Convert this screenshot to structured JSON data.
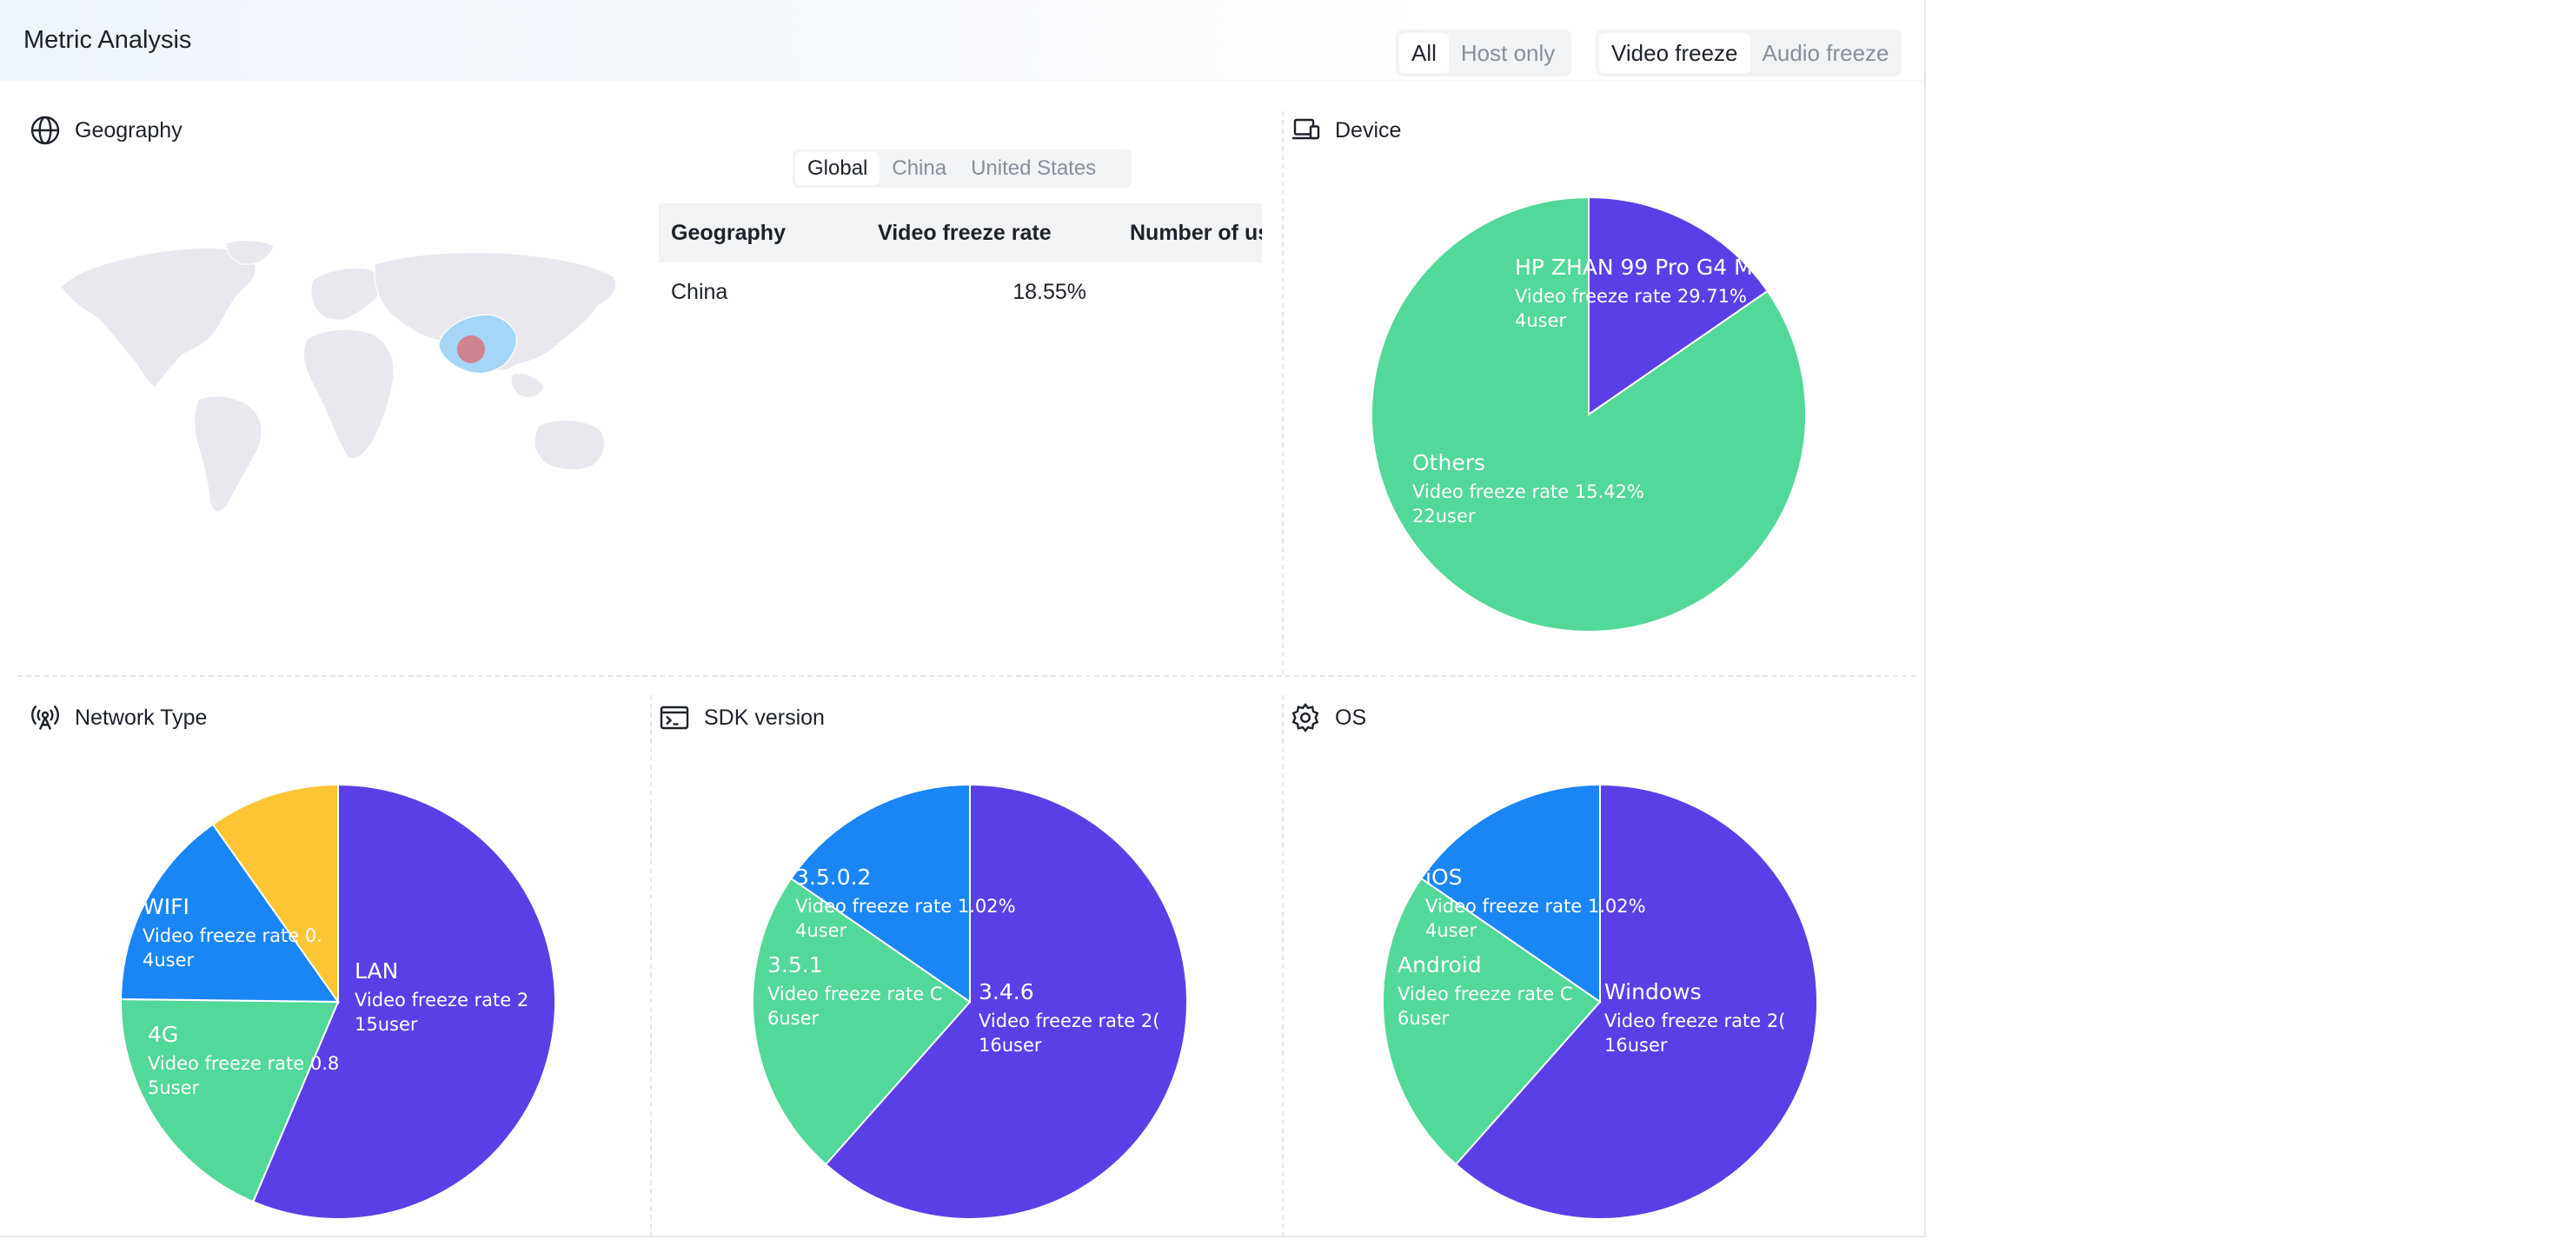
{
  "header": {
    "title": "Metric Analysis",
    "scope_options": [
      {
        "label": "All",
        "selected": true
      },
      {
        "label": "Host only",
        "selected": false
      }
    ],
    "metric_options": [
      {
        "label": "Video freeze",
        "selected": true
      },
      {
        "label": "Audio freeze",
        "selected": false
      }
    ]
  },
  "geography": {
    "title": "Geography",
    "region_tabs": [
      {
        "label": "Global",
        "selected": true
      },
      {
        "label": "China",
        "selected": false
      },
      {
        "label": "United States",
        "selected": false
      }
    ],
    "table": {
      "columns": [
        "Geography",
        "Video freeze rate",
        "Number of us"
      ],
      "rows": [
        [
          "China",
          "18.55%",
          ""
        ]
      ]
    }
  },
  "colors": {
    "purple": "#5b3fe6",
    "green": "#52d898",
    "blue": "#1a86f5",
    "yellow": "#fdc434",
    "map_land": "#e9e8ee",
    "map_highlight": "#a5d6f7",
    "map_marker": "#d57a86"
  },
  "device": {
    "title": "Device",
    "icon": "laptop-icon",
    "chart_data": {
      "type": "pie",
      "slices": [
        {
          "label": "HP ZHAN 99 Pro G4 M",
          "line1": "Video freeze rate 29.71%",
          "line2": "4user",
          "value": 4,
          "color": "#5b3fe6"
        },
        {
          "label": "Others",
          "line1": "Video freeze rate 15.42%",
          "line2": "22user",
          "value": 22,
          "color": "#52d898"
        }
      ]
    }
  },
  "network": {
    "title": "Network Type",
    "icon": "antenna-icon",
    "chart_data": {
      "type": "pie",
      "slices": [
        {
          "label": "LAN",
          "line1": "Video freeze rate 2",
          "line2": "15user",
          "value": 15,
          "color": "#5b3fe6"
        },
        {
          "label": "4G",
          "line1": "Video freeze rate 0.8",
          "line2": "5user",
          "value": 5,
          "color": "#52d898"
        },
        {
          "label": "WIFI",
          "line1": "Video freeze rate 0.",
          "line2": "4user",
          "value": 4,
          "color": "#1a86f5"
        },
        {
          "label": "",
          "line1": "",
          "line2": "",
          "value": 2.6,
          "color": "#fdc434"
        }
      ]
    }
  },
  "sdk": {
    "title": "SDK version",
    "icon": "terminal-icon",
    "chart_data": {
      "type": "pie",
      "slices": [
        {
          "label": "3.4.6",
          "line1": "Video freeze rate 2(",
          "line2": "16user",
          "value": 16,
          "color": "#5b3fe6"
        },
        {
          "label": "3.5.1",
          "line1": "Video freeze rate C",
          "line2": "6user",
          "value": 6,
          "color": "#52d898"
        },
        {
          "label": "3.5.0.2",
          "line1": "Video freeze rate 1.02%",
          "line2": "4user",
          "value": 4,
          "color": "#1a86f5"
        }
      ]
    }
  },
  "os": {
    "title": "OS",
    "icon": "gear-icon",
    "chart_data": {
      "type": "pie",
      "slices": [
        {
          "label": "Windows",
          "line1": "Video freeze rate 2(",
          "line2": "16user",
          "value": 16,
          "color": "#5b3fe6"
        },
        {
          "label": "Android",
          "line1": "Video freeze rate C",
          "line2": "6user",
          "value": 6,
          "color": "#52d898"
        },
        {
          "label": "iOS",
          "line1": "Video freeze rate 1.02%",
          "line2": "4user",
          "value": 4,
          "color": "#1a86f5"
        }
      ]
    }
  }
}
